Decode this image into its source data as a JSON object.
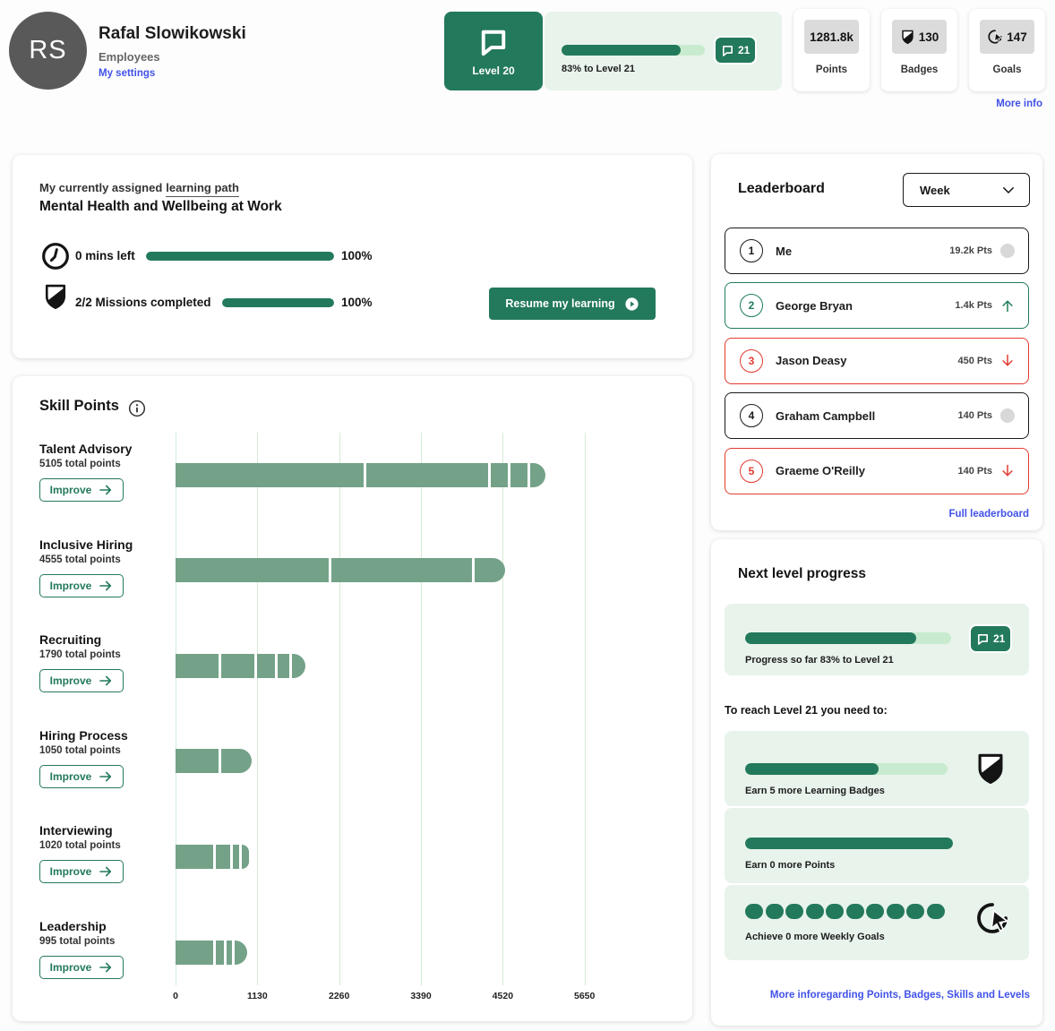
{
  "colors": {
    "primary_green": "#23795b",
    "panel_green": "#e8f3ec",
    "track_green": "#c8ebcf",
    "bar_sage": "#74a288",
    "grid_green": "#d4ebd6",
    "link_blue": "#4152e8",
    "alert_red": "#e23b31",
    "neutral_dark": "#1a1a1a"
  },
  "header": {
    "initials": "RS",
    "name": "Rafal Slowikowski",
    "role": "Employees",
    "settings_link": "My settings",
    "level_label": "Level 20",
    "level_progress_pct": 83,
    "level_progress_text": "83% to Level 21",
    "next_level_badge": "21",
    "stats": [
      {
        "value": "1281.8k",
        "label": "Points",
        "icon": "none"
      },
      {
        "value": "130",
        "label": "Badges",
        "icon": "badge-icon"
      },
      {
        "value": "147",
        "label": "Goals",
        "icon": "goals-icon"
      }
    ],
    "more_info_link": "More info"
  },
  "learning_path": {
    "eyebrow_prefix": "My currently assigned",
    "eyebrow_link": "learning path",
    "title": "Mental Health and Wellbeing at Work",
    "time_label": "0 mins left",
    "time_pct": 100,
    "time_pct_label": "100%",
    "missions_label": "2/2 Missions completed",
    "missions_pct": 100,
    "missions_pct_label": "100%",
    "resume_button": "Resume my learning"
  },
  "skill_points": {
    "title": "Skill Points",
    "improve_label": "Improve"
  },
  "chart_data": {
    "type": "bar",
    "orientation": "horizontal",
    "title": "Skill Points",
    "categories": [
      "Talent Advisory",
      "Inclusive Hiring",
      "Recruiting",
      "Hiring Process",
      "Interviewing",
      "Leadership"
    ],
    "values": [
      5105,
      4555,
      1790,
      1050,
      1020,
      995
    ],
    "total_labels": [
      "5105 total points",
      "4555 total points",
      "1790 total points",
      "1050 total points",
      "1020 total points",
      "995 total points"
    ],
    "segments": [
      [
        2636,
        1721,
        272,
        272,
        204
      ],
      [
        2153,
        1981,
        421
      ],
      [
        631,
        495,
        285,
        198,
        181
      ],
      [
        631,
        419
      ],
      [
        557,
        235,
        124,
        104
      ],
      [
        557,
        148,
        112,
        178
      ]
    ],
    "xticks": [
      0,
      1130,
      2260,
      3390,
      4520,
      5650
    ],
    "xlim": [
      0,
      5650
    ],
    "grid": true,
    "bar_color": "#74a288"
  },
  "leaderboard": {
    "title": "Leaderboard",
    "period_selector": "Week",
    "entries": [
      {
        "rank": "1",
        "name": "Me",
        "points": "19.2k Pts",
        "trend": "none",
        "accent": "neutral"
      },
      {
        "rank": "2",
        "name": "George Bryan",
        "points": "1.4k Pts",
        "trend": "up",
        "accent": "green"
      },
      {
        "rank": "3",
        "name": "Jason Deasy",
        "points": "450 Pts",
        "trend": "down",
        "accent": "red"
      },
      {
        "rank": "4",
        "name": "Graham Campbell",
        "points": "140 Pts",
        "trend": "none",
        "accent": "neutral"
      },
      {
        "rank": "5",
        "name": "Graeme O'Reilly",
        "points": "140 Pts",
        "trend": "down",
        "accent": "red"
      }
    ],
    "full_link": "Full leaderboard"
  },
  "next_level": {
    "title": "Next level progress",
    "progress_pct": 83,
    "progress_text": "Progress so far 83% to Level 21",
    "badge": "21",
    "subtitle": "To reach Level 21 you need to:",
    "tasks": [
      {
        "text": "Earn 5 more Learning Badges",
        "pct": 66,
        "icon": "badge-icon"
      },
      {
        "text": "Earn 0 more Points",
        "pct": 100,
        "icon": "none"
      },
      {
        "text": "Achieve 0 more Weekly Goals",
        "dots": 10,
        "icon": "goals-icon"
      }
    ],
    "footer_link": "More inforegarding Points, Badges, Skills and Levels"
  }
}
